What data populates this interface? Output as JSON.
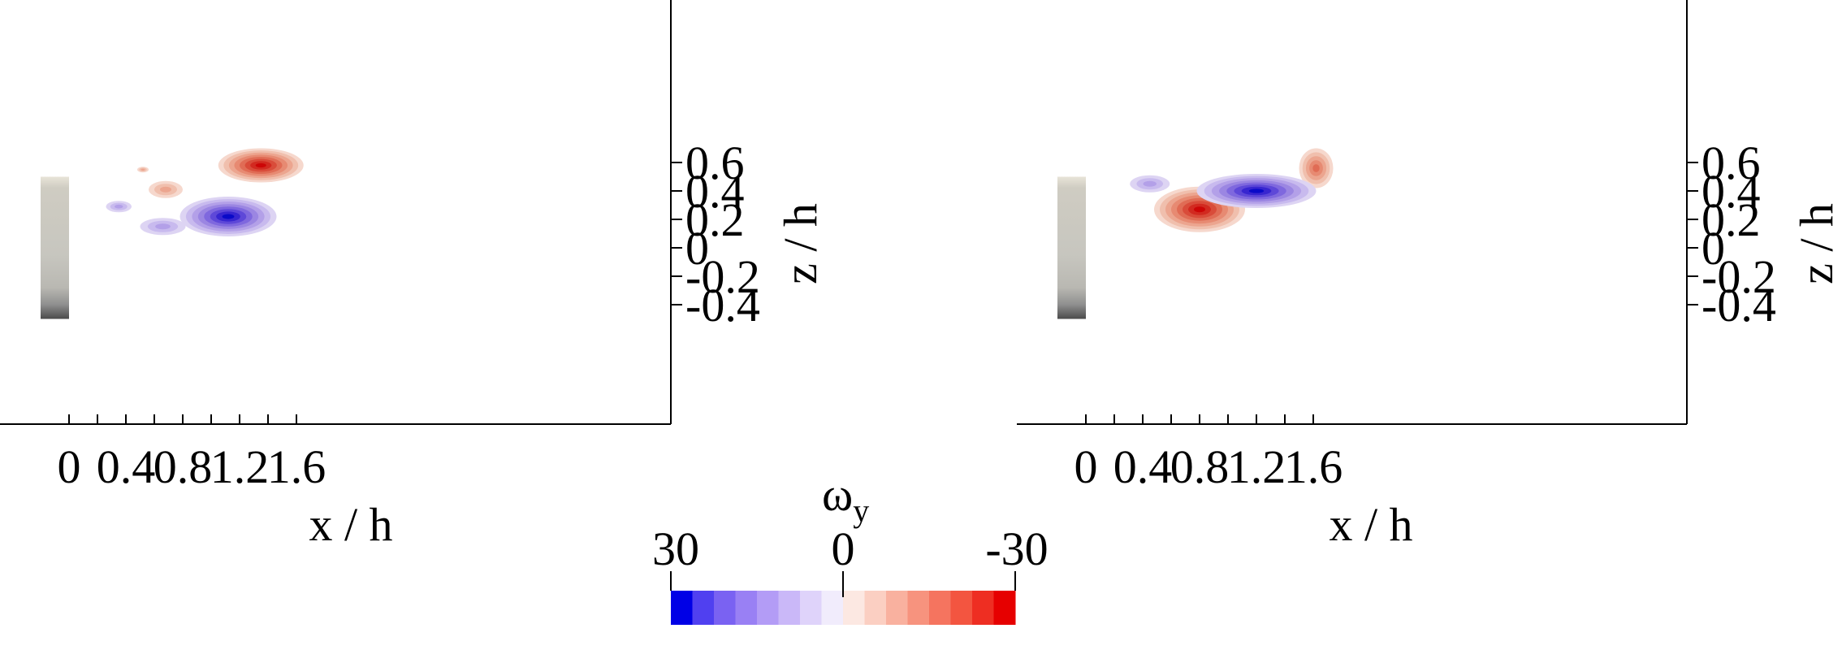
{
  "chart_data": [
    {
      "type": "heatmap",
      "quantity": "ω",
      "quantity_subscript": "y",
      "xlabel": "x / h",
      "ylabel": "z / h",
      "xlim": [
        -0.4,
        1.7
      ],
      "ylim": [
        -0.5,
        0.7
      ],
      "xticks": [
        "0",
        "0.4",
        "0.8",
        "1.2",
        "1.6"
      ],
      "yticks": [
        "0.6",
        "0.4",
        "0.2",
        "0",
        "-0.2",
        "-0.4"
      ],
      "xtick_values": [
        0,
        0.4,
        0.8,
        1.2,
        1.6
      ],
      "ytick_values": [
        0.6,
        0.4,
        0.2,
        0,
        -0.2,
        -0.4
      ],
      "xminor": [
        0.2,
        0.6,
        1.0,
        1.4
      ],
      "obstacle": {
        "x": [
          -0.2,
          0
        ],
        "z": [
          -0.5,
          0.5
        ]
      },
      "regions": [
        {
          "label": "negative vorticity (red)",
          "sign": "negative",
          "cx": 1.35,
          "cz": 0.58,
          "rx": 0.3,
          "rz": 0.12,
          "peak": -30
        },
        {
          "label": "negative vorticity (red)",
          "sign": "negative",
          "cx": 0.68,
          "cz": 0.41,
          "rx": 0.12,
          "rz": 0.06,
          "peak": -12
        },
        {
          "label": "negative vorticity (red)",
          "sign": "negative",
          "cx": 0.52,
          "cz": 0.55,
          "rx": 0.04,
          "rz": 0.02,
          "peak": -10
        },
        {
          "label": "positive vorticity (blue)",
          "sign": "positive",
          "cx": 1.12,
          "cz": 0.22,
          "rx": 0.34,
          "rz": 0.14,
          "peak": 30
        },
        {
          "label": "positive vorticity (blue)",
          "sign": "positive",
          "cx": 0.66,
          "cz": 0.15,
          "rx": 0.16,
          "rz": 0.06,
          "peak": 10
        },
        {
          "label": "positive vorticity (blue)",
          "sign": "positive",
          "cx": 0.35,
          "cz": 0.29,
          "rx": 0.09,
          "rz": 0.04,
          "peak": 10
        }
      ]
    },
    {
      "type": "heatmap",
      "quantity": "ω",
      "quantity_subscript": "y",
      "xlabel": "x / h",
      "ylabel": "z / h",
      "xlim": [
        -0.4,
        1.7
      ],
      "ylim": [
        -0.5,
        0.7
      ],
      "xticks": [
        "0",
        "0.4",
        "0.8",
        "1.2",
        "1.6"
      ],
      "yticks": [
        "0.6",
        "0.4",
        "0.2",
        "0",
        "-0.2",
        "-0.4"
      ],
      "xtick_values": [
        0,
        0.4,
        0.8,
        1.2,
        1.6
      ],
      "ytick_values": [
        0.6,
        0.4,
        0.2,
        0,
        -0.2,
        -0.4
      ],
      "xminor": [
        0.2,
        0.6,
        1.0,
        1.4
      ],
      "obstacle": {
        "x": [
          -0.2,
          0
        ],
        "z": [
          -0.5,
          0.5
        ]
      },
      "regions": [
        {
          "label": "negative vorticity (red)",
          "sign": "negative",
          "cx": 0.8,
          "cz": 0.27,
          "rx": 0.32,
          "rz": 0.16,
          "peak": -30
        },
        {
          "label": "negative vorticity (red)",
          "sign": "negative",
          "cx": 1.62,
          "cz": 0.56,
          "rx": 0.12,
          "rz": 0.14,
          "peak": -20
        },
        {
          "label": "positive vorticity (blue)",
          "sign": "positive",
          "cx": 1.2,
          "cz": 0.4,
          "rx": 0.42,
          "rz": 0.12,
          "peak": 30
        },
        {
          "label": "positive vorticity (blue)",
          "sign": "positive",
          "cx": 0.45,
          "cz": 0.45,
          "rx": 0.14,
          "rz": 0.06,
          "peak": 12
        }
      ]
    }
  ],
  "colorbar": {
    "title": "ω",
    "title_subscript": "y",
    "label_left": "30",
    "label_center": "0",
    "label_right": "-30",
    "colors": [
      "#0000e6",
      "#5040f0",
      "#7a62f2",
      "#9980f4",
      "#b39cf6",
      "#cab8f8",
      "#dfd3fa",
      "#f1ecfc",
      "#fce8e2",
      "#fbcfc2",
      "#f9b19f",
      "#f7937e",
      "#f5745f",
      "#f35540",
      "#ee2e22",
      "#e60000"
    ]
  },
  "colors": {
    "positive_levels": [
      "#ddd4f3",
      "#c8baee",
      "#b3a0e8",
      "#9b86e2",
      "#7f68de",
      "#5e48d8",
      "#3826d0",
      "#0a0ac8"
    ],
    "negative_levels": [
      "#f6d8cd",
      "#f0bfad",
      "#eca58f",
      "#e78a72",
      "#e06c55",
      "#d94c3a",
      "#d22a20",
      "#cc0606"
    ]
  }
}
